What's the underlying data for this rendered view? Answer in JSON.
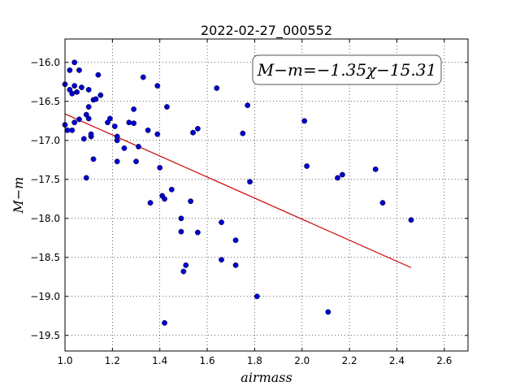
{
  "chart_data": {
    "type": "scatter",
    "title": "2022-02-27_000552",
    "xlabel": "airmass",
    "ylabel": "M−m",
    "xlim": [
      1.0,
      2.7
    ],
    "ylim": [
      -19.7,
      -15.7
    ],
    "x_ticks": [
      "1.0",
      "1.2",
      "1.4",
      "1.6",
      "1.8",
      "2.0",
      "2.2",
      "2.4",
      "2.6"
    ],
    "y_ticks": [
      "−16.0",
      "−16.5",
      "−17.0",
      "−17.5",
      "−18.0",
      "−18.5",
      "−19.0",
      "−19.5"
    ],
    "grid": true,
    "annotation": "M−m=−1.35χ−15.31",
    "point_color": "#0000cc",
    "fit_color": "#cc0000",
    "fit_line": {
      "slope": -1.35,
      "intercept": -15.31,
      "x_range": [
        1.0,
        2.46
      ]
    },
    "points": [
      [
        1.0,
        -16.28
      ],
      [
        1.0,
        -16.8
      ],
      [
        1.01,
        -16.87
      ],
      [
        1.02,
        -16.35
      ],
      [
        1.02,
        -16.1
      ],
      [
        1.03,
        -16.4
      ],
      [
        1.03,
        -16.87
      ],
      [
        1.04,
        -16.0
      ],
      [
        1.04,
        -16.3
      ],
      [
        1.05,
        -16.38
      ],
      [
        1.04,
        -16.77
      ],
      [
        1.06,
        -16.1
      ],
      [
        1.06,
        -16.73
      ],
      [
        1.07,
        -16.32
      ],
      [
        1.08,
        -16.98
      ],
      [
        1.09,
        -16.67
      ],
      [
        1.09,
        -17.48
      ],
      [
        1.1,
        -16.35
      ],
      [
        1.1,
        -16.72
      ],
      [
        1.1,
        -16.57
      ],
      [
        1.11,
        -16.95
      ],
      [
        1.11,
        -16.92
      ],
      [
        1.12,
        -17.24
      ],
      [
        1.12,
        -16.48
      ],
      [
        1.13,
        -16.47
      ],
      [
        1.14,
        -16.16
      ],
      [
        1.15,
        -16.42
      ],
      [
        1.18,
        -16.77
      ],
      [
        1.19,
        -16.72
      ],
      [
        1.21,
        -16.82
      ],
      [
        1.22,
        -17.0
      ],
      [
        1.22,
        -17.27
      ],
      [
        1.22,
        -16.95
      ],
      [
        1.25,
        -17.1
      ],
      [
        1.27,
        -16.77
      ],
      [
        1.29,
        -16.78
      ],
      [
        1.29,
        -16.6
      ],
      [
        1.3,
        -17.27
      ],
      [
        1.31,
        -17.08
      ],
      [
        1.33,
        -16.19
      ],
      [
        1.35,
        -16.87
      ],
      [
        1.36,
        -17.8
      ],
      [
        1.39,
        -16.92
      ],
      [
        1.39,
        -16.3
      ],
      [
        1.4,
        -17.35
      ],
      [
        1.41,
        -17.71
      ],
      [
        1.42,
        -17.75
      ],
      [
        1.43,
        -16.57
      ],
      [
        1.42,
        -19.34
      ],
      [
        1.45,
        -17.63
      ],
      [
        1.49,
        -18.0
      ],
      [
        1.49,
        -18.17
      ],
      [
        1.5,
        -18.68
      ],
      [
        1.51,
        -18.6
      ],
      [
        1.53,
        -17.78
      ],
      [
        1.54,
        -16.9
      ],
      [
        1.56,
        -16.85
      ],
      [
        1.56,
        -18.18
      ],
      [
        1.64,
        -16.33
      ],
      [
        1.66,
        -18.05
      ],
      [
        1.66,
        -18.53
      ],
      [
        1.72,
        -18.28
      ],
      [
        1.72,
        -18.6
      ],
      [
        1.75,
        -16.91
      ],
      [
        1.77,
        -16.55
      ],
      [
        1.78,
        -17.53
      ],
      [
        1.81,
        -19.0
      ],
      [
        2.01,
        -16.75
      ],
      [
        2.02,
        -17.33
      ],
      [
        2.11,
        -19.2
      ],
      [
        2.15,
        -17.48
      ],
      [
        2.17,
        -17.44
      ],
      [
        2.31,
        -17.37
      ],
      [
        2.34,
        -17.8
      ],
      [
        2.46,
        -18.02
      ]
    ]
  }
}
